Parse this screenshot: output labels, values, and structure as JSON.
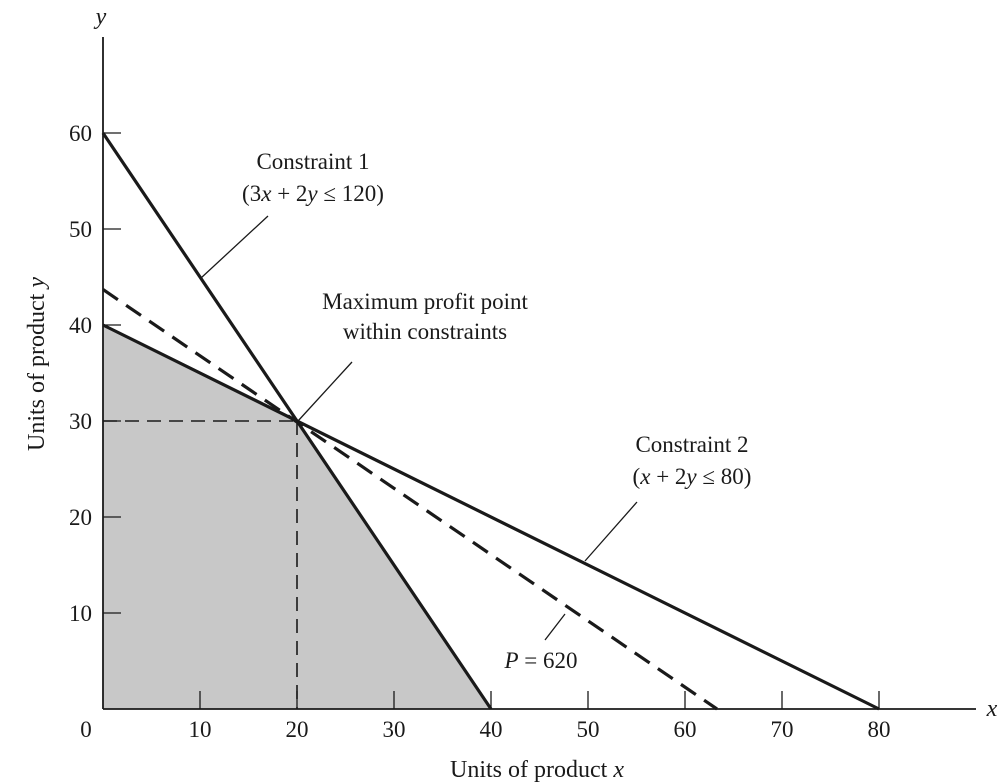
{
  "chart_data": {
    "type": "line",
    "xlabel": "Units of product x",
    "ylabel": "Units of product y",
    "x_axis_letter": "x",
    "y_axis_letter": "y",
    "origin_label": "0",
    "xlim": [
      0,
      90
    ],
    "ylim": [
      0,
      70
    ],
    "x_ticks": [
      10,
      20,
      30,
      40,
      50,
      60,
      70,
      80
    ],
    "y_ticks": [
      10,
      20,
      30,
      40,
      50,
      60
    ],
    "grid": false,
    "series": [
      {
        "name": "Constraint 1",
        "equation": "3x + 2y ≤ 120",
        "style": "solid",
        "points": [
          [
            0,
            60
          ],
          [
            40,
            0
          ]
        ]
      },
      {
        "name": "Constraint 2",
        "equation": "x + 2y ≤ 80",
        "style": "solid",
        "points": [
          [
            0,
            40
          ],
          [
            80,
            0
          ]
        ]
      },
      {
        "name": "P = 620",
        "style": "dashed",
        "points": [
          [
            0,
            43.7
          ],
          [
            63.3,
            0
          ]
        ]
      }
    ],
    "feasible_region": [
      [
        0,
        0
      ],
      [
        0,
        40
      ],
      [
        20,
        30
      ],
      [
        40,
        0
      ]
    ],
    "optimum": {
      "x": 20,
      "y": 30
    },
    "annotations": {
      "constraint1": {
        "line1": "Constraint 1",
        "line2": "(3x + 2y ≤ 120)"
      },
      "constraint2": {
        "line1": "Constraint 2",
        "line2": "(x + 2y ≤ 80)"
      },
      "max_point": {
        "line1": "Maximum profit point",
        "line2": "within constraints"
      },
      "profit_line": {
        "var": "P",
        "rest": " = 620"
      }
    },
    "colors": {
      "line": "#1a1a1a",
      "feasible_fill": "#c8c8c8",
      "background": "#ffffff"
    }
  }
}
